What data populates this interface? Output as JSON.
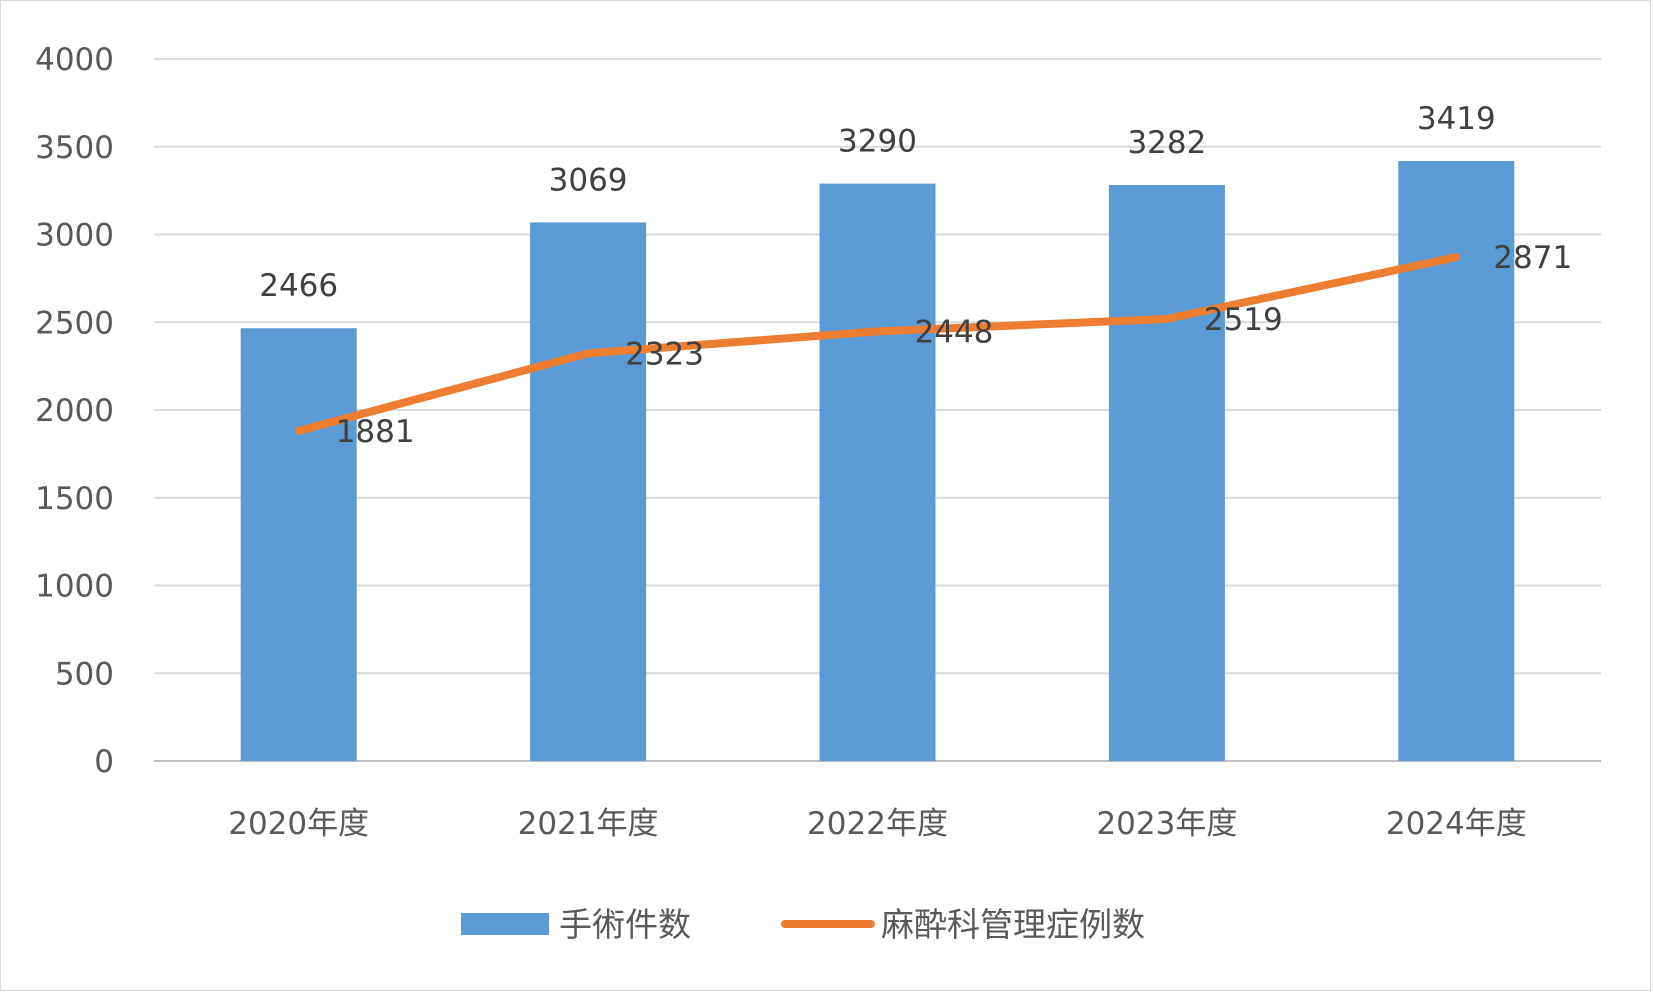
{
  "chart_data": {
    "type": "bar",
    "categories": [
      "2020年度",
      "2021年度",
      "2022年度",
      "2023年度",
      "2024年度"
    ],
    "series": [
      {
        "name": "手術件数",
        "type": "bar",
        "color": "#5b9bd5",
        "values": [
          2466,
          3069,
          3290,
          3282,
          3419
        ]
      },
      {
        "name": "麻酔科管理症例数",
        "type": "line",
        "color": "#ed7d31",
        "values": [
          1881,
          2323,
          2448,
          2519,
          2871
        ]
      }
    ],
    "ylim": [
      0,
      4000
    ],
    "yticks": [
      0,
      500,
      1000,
      1500,
      2000,
      2500,
      3000,
      3500,
      4000
    ],
    "grid": true,
    "legend": "bottom",
    "data_labels": true
  }
}
